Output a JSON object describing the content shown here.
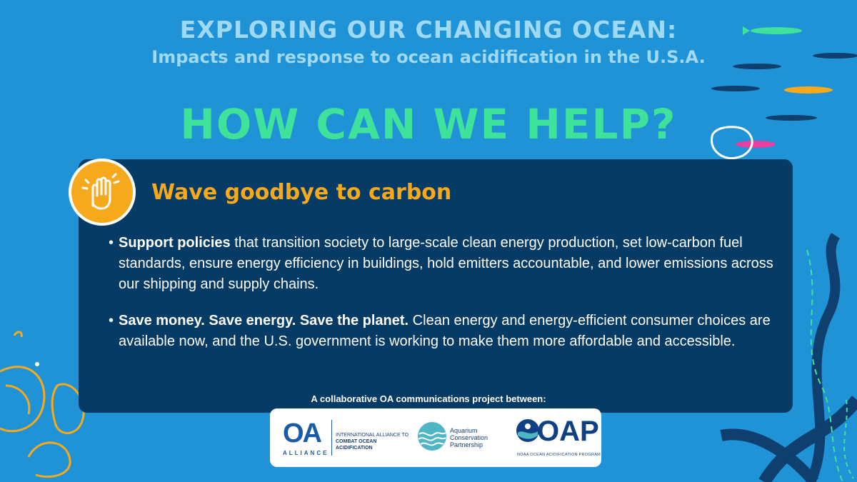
{
  "header": {
    "title": "EXPLORING OUR CHANGING OCEAN:",
    "subtitle": "Impacts and response to ocean acidification in the U.S.A."
  },
  "headline": "HOW CAN WE HELP?",
  "section": {
    "icon": "waving-hand-icon",
    "title": "Wave goodbye to carbon"
  },
  "bullets": [
    {
      "bold": "Support policies",
      "text": " that transition society to large-scale clean energy production, set low-carbon fuel standards, ensure energy efficiency in buildings, hold emitters accountable, and lower emissions across our shipping and supply chains."
    },
    {
      "bold": "Save money. Save energy. Save the planet.",
      "text": "  Clean energy and energy-efficient consumer choices are available now, and the U.S. government is working to make them more affordable and accessible."
    }
  ],
  "footer": {
    "text": "A collaborative OA communications project between:",
    "logos": {
      "oa_letters": "OA",
      "oa_alliance": "ALLIANCE",
      "oa_line1": "INTERNATIONAL ALLIANCE TO",
      "oa_line2": "COMBAT OCEAN ACIDIFICATION",
      "acp_line1": "Aquarium",
      "acp_line2": "Conservation",
      "acp_line3": "Partnership",
      "oap_letters": "OAP",
      "oap_sub": "NOAA OCEAN ACIDIFICATION PROGRAM"
    }
  },
  "colors": {
    "background": "#1f93d6",
    "panel": "#053b64",
    "headline": "#3ee29a",
    "accent": "#f7a91d"
  }
}
